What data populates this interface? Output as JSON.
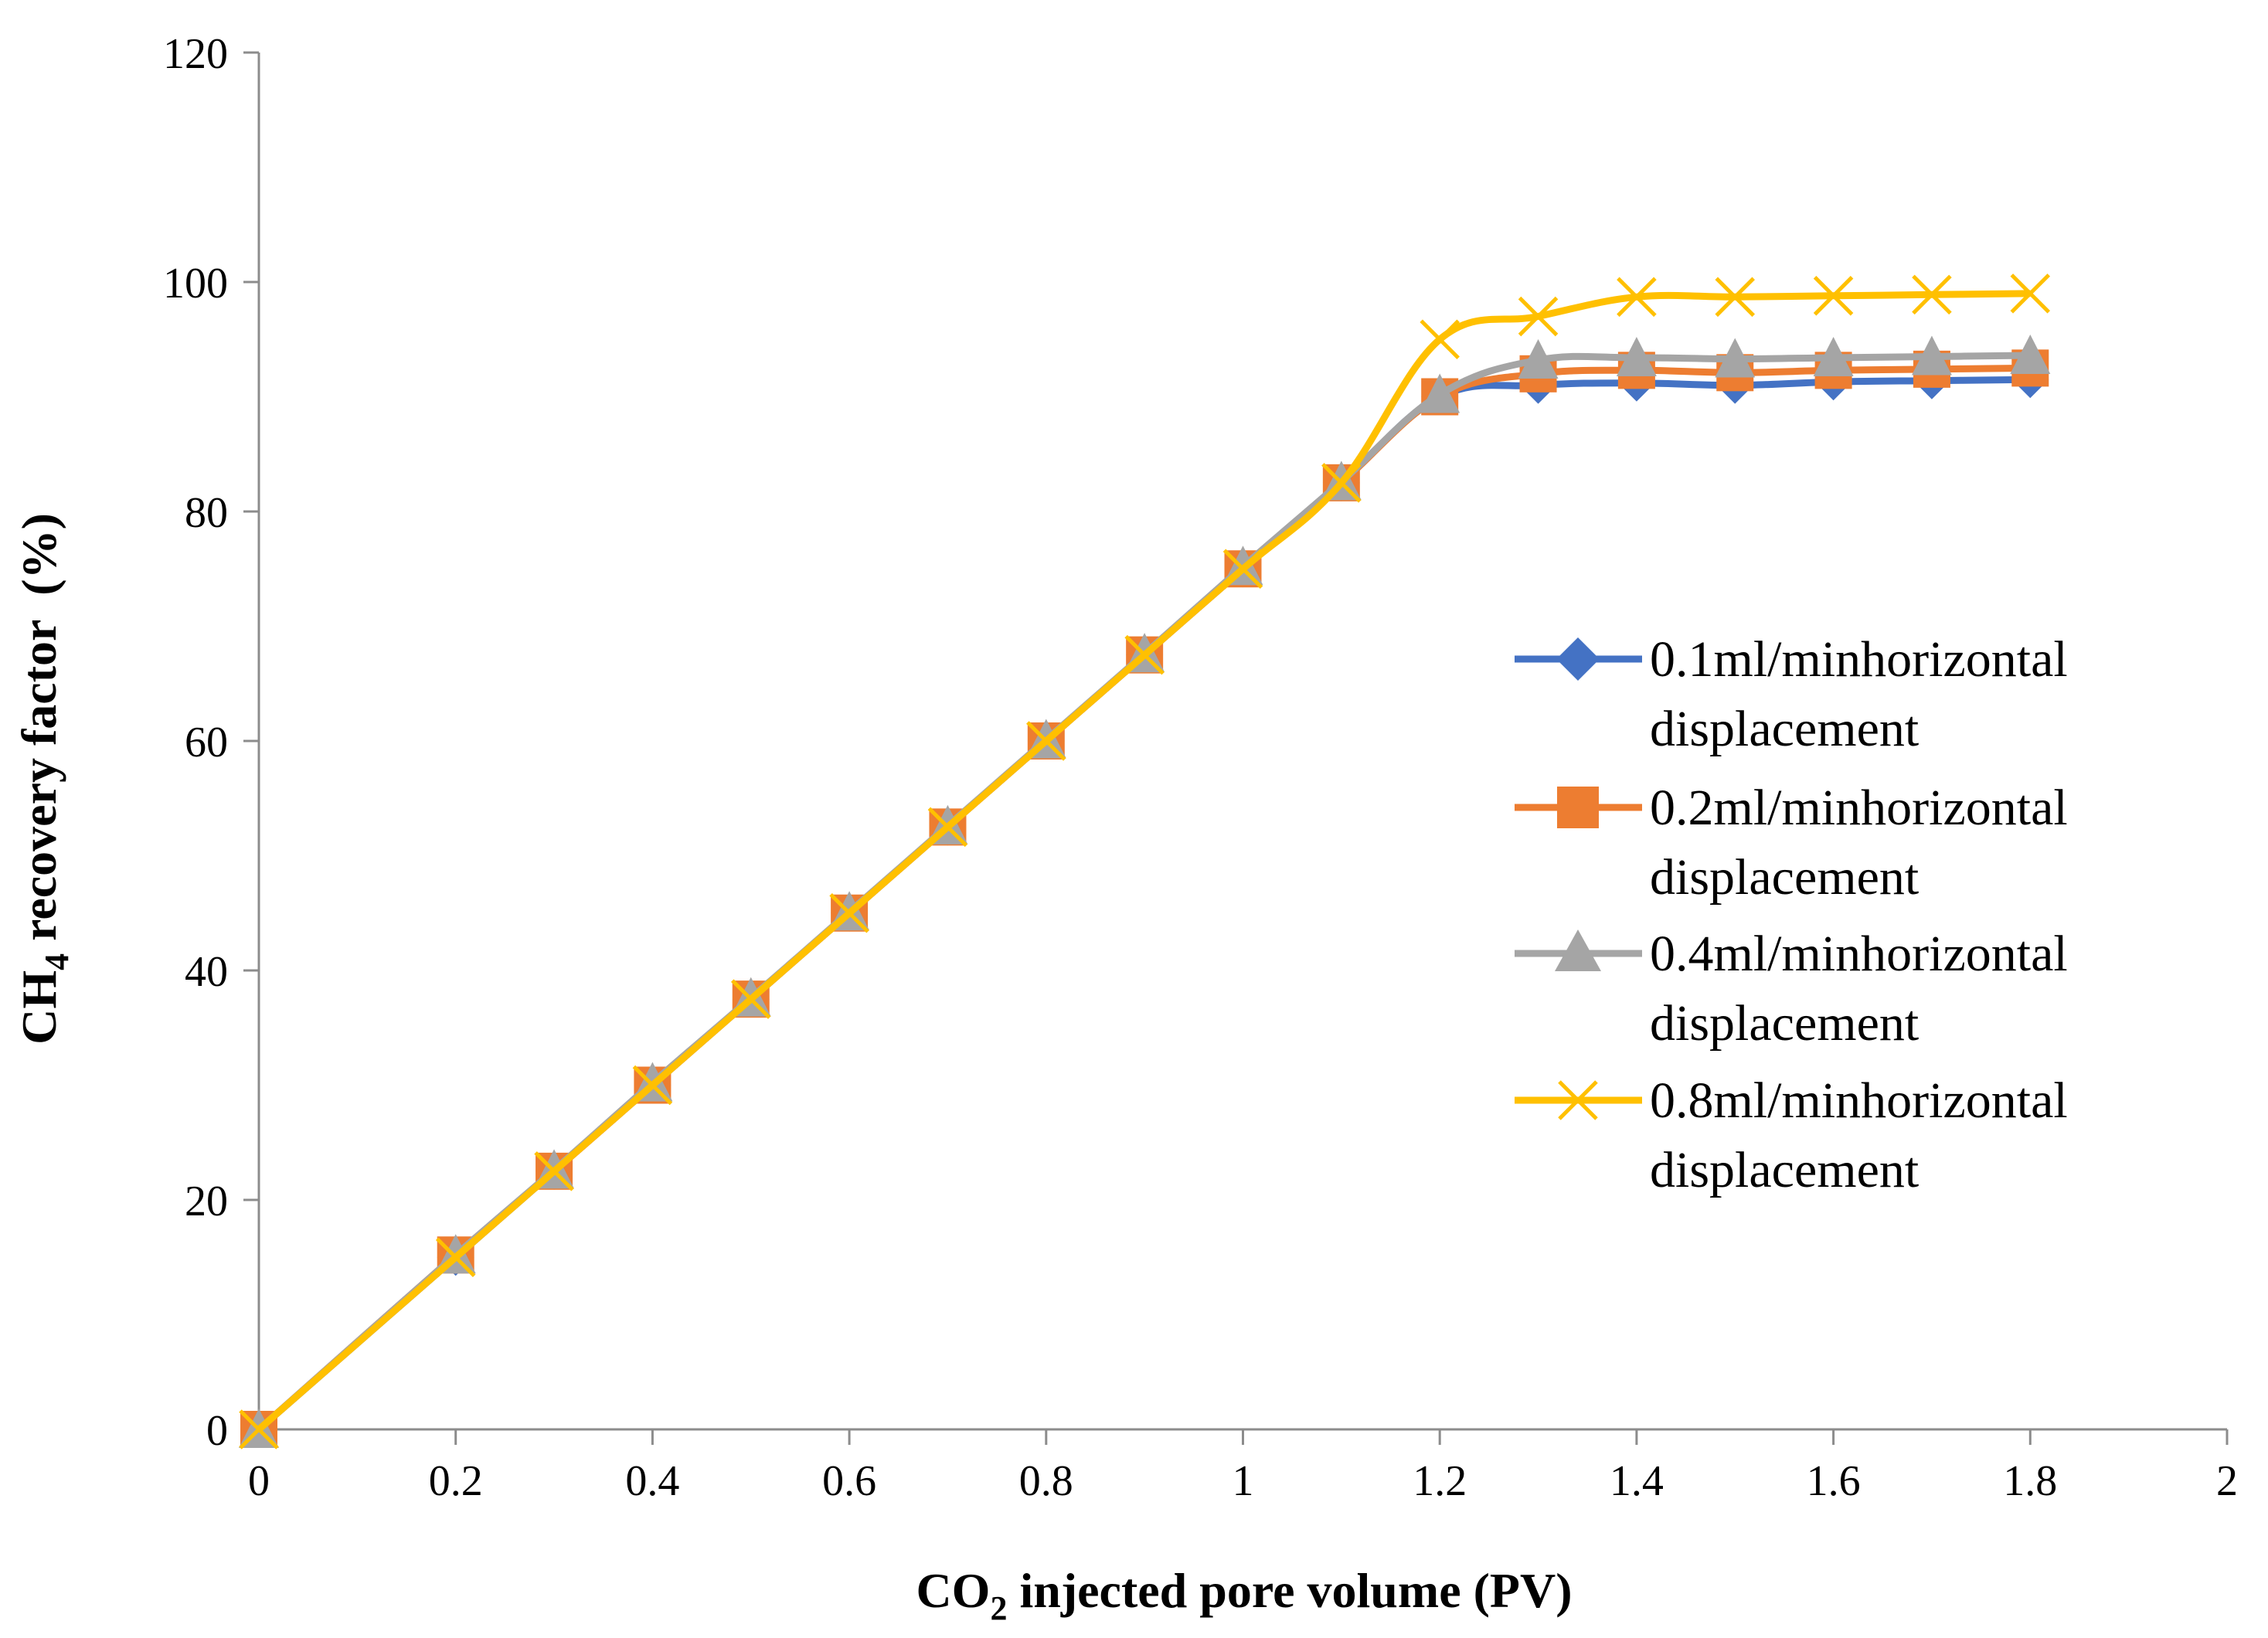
{
  "chart_data": {
    "type": "line",
    "title": "",
    "xlabel": {
      "main": "CO",
      "sub": "2",
      "rest": " injected pore volume (PV)"
    },
    "ylabel": {
      "main": "CH",
      "sub": "4",
      "rest": " recovery factor  (%)"
    },
    "xlim": [
      0,
      2
    ],
    "ylim": [
      0,
      120
    ],
    "xticks": [
      0,
      0.2,
      0.4,
      0.6,
      0.8,
      1,
      1.2,
      1.4,
      1.6,
      1.8,
      2
    ],
    "xtick_labels": [
      "0",
      "0.2",
      "0.4",
      "0.6",
      "0.8",
      "1",
      "1.2",
      "1.4",
      "1.6",
      "1.8",
      "2"
    ],
    "yticks": [
      0,
      20,
      40,
      60,
      80,
      100,
      120
    ],
    "ytick_labels": [
      "0",
      "20",
      "40",
      "60",
      "80",
      "100",
      "120"
    ],
    "grid": false,
    "legend_position": "right",
    "x": [
      0,
      0.2,
      0.3,
      0.4,
      0.5,
      0.6,
      0.7,
      0.8,
      0.9,
      1.0,
      1.1,
      1.2,
      1.3,
      1.4,
      1.5,
      1.6,
      1.7,
      1.8
    ],
    "series": [
      {
        "name": "0.1ml/minhorizontal displacement",
        "legend_lines": [
          "0.1ml/minhorizontal",
          "displacement"
        ],
        "color": "#4472C4",
        "marker": "diamond",
        "values": [
          0,
          15,
          22.5,
          30,
          37.5,
          45,
          52.5,
          60,
          67.5,
          75,
          82.5,
          90,
          91,
          91.2,
          91,
          91.3,
          91.4,
          91.5
        ]
      },
      {
        "name": "0.2ml/minhorizontal displacement",
        "legend_lines": [
          "0.2ml/minhorizontal",
          "displacement"
        ],
        "color": "#ED7D31",
        "marker": "square",
        "values": [
          0,
          15.2,
          22.5,
          30,
          37.5,
          45,
          52.5,
          60,
          67.5,
          75,
          82.5,
          90,
          92,
          92.3,
          92.1,
          92.3,
          92.4,
          92.5
        ]
      },
      {
        "name": "0.4ml/minhorizontal displacement",
        "legend_lines": [
          "0.4ml/minhorizontal",
          "displacement"
        ],
        "color": "#A5A5A5",
        "marker": "triangle",
        "values": [
          0,
          15.2,
          22.6,
          30.2,
          37.6,
          45.1,
          52.6,
          60.1,
          67.6,
          75.2,
          82.6,
          90.2,
          93.2,
          93.4,
          93.3,
          93.4,
          93.5,
          93.6
        ]
      },
      {
        "name": "0.8ml/minhorizontal displacement",
        "legend_lines": [
          "0.8ml/minhorizontal",
          "displacement"
        ],
        "color": "#FFC000",
        "marker": "x",
        "values": [
          0,
          15,
          22.5,
          30,
          37.5,
          45,
          52.5,
          60,
          67.5,
          75,
          82.5,
          95,
          97,
          98.7,
          98.7,
          98.8,
          98.9,
          99
        ]
      }
    ]
  }
}
